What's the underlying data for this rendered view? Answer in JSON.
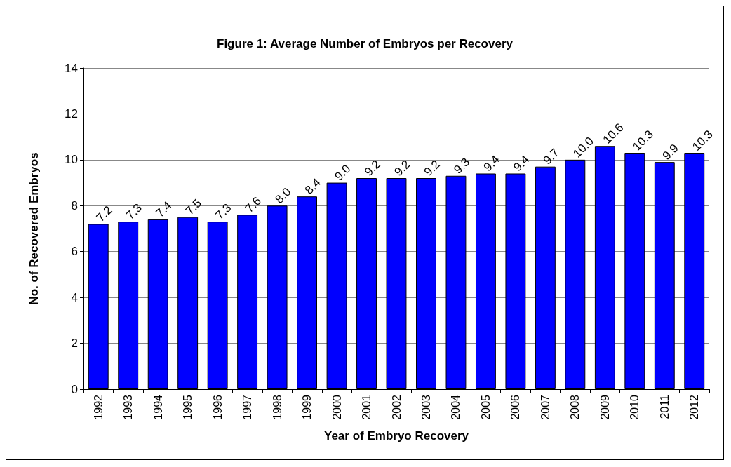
{
  "chart_data": {
    "type": "bar",
    "title": "Figure 1: Average Number of Embryos per Recovery",
    "xlabel": "Year of Embryo Recovery",
    "ylabel": "No. of Recovered Embryos",
    "categories": [
      "1992",
      "1993",
      "1994",
      "1995",
      "1996",
      "1997",
      "1998",
      "1999",
      "2000",
      "2001",
      "2002",
      "2003",
      "2004",
      "2005",
      "2006",
      "2007",
      "2008",
      "2009",
      "2010",
      "2011",
      "2012"
    ],
    "values": [
      7.2,
      7.3,
      7.4,
      7.5,
      7.3,
      7.6,
      8.0,
      8.4,
      9.0,
      9.2,
      9.2,
      9.2,
      9.3,
      9.4,
      9.4,
      9.7,
      10.0,
      10.6,
      10.3,
      9.9,
      10.3
    ],
    "value_labels": [
      "7.2",
      "7.3",
      "7.4",
      "7.5",
      "7.3",
      "7.6",
      "8.0",
      "8.4",
      "9.0",
      "9.2",
      "9.2",
      "9.2",
      "9.3",
      "9.4",
      "9.4",
      "9.7",
      "10.0",
      "10.6",
      "10.3",
      "9.9",
      "10.3"
    ],
    "color": "#0000ff",
    "ylim": [
      0,
      14
    ],
    "yticks": [
      0,
      2,
      4,
      6,
      8,
      10,
      12,
      14
    ],
    "grid": "y"
  }
}
